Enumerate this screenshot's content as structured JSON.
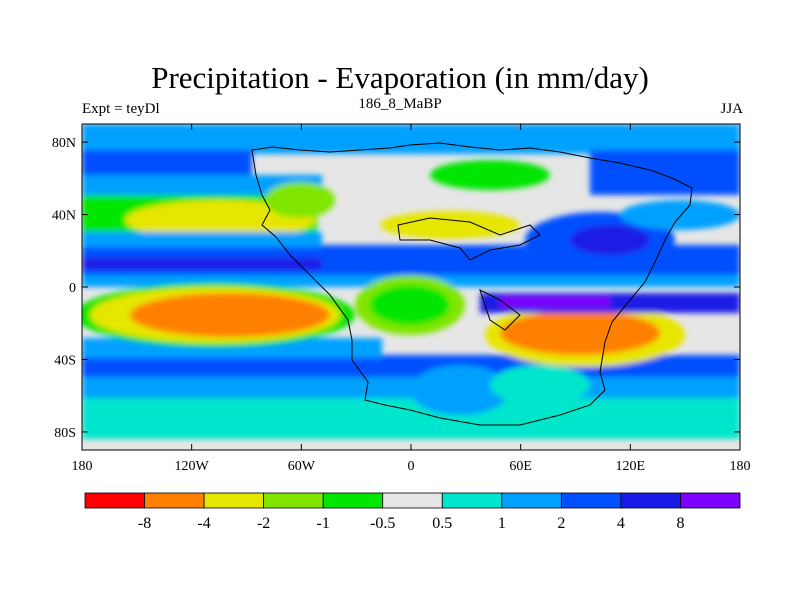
{
  "title": "Precipitation - Evaporation (in mm/day)",
  "left_label": "Expt = teyDl",
  "center_label": "186_8_MaBP",
  "right_label": "JJA",
  "map": {
    "projection": "cylindrical-equidistant",
    "lon_range": [
      -180,
      180
    ],
    "lat_range": [
      -90,
      90
    ],
    "x_ticks": [
      {
        "value": -180,
        "label": "180"
      },
      {
        "value": -120,
        "label": "120W"
      },
      {
        "value": -60,
        "label": "60W"
      },
      {
        "value": 0,
        "label": "0"
      },
      {
        "value": 60,
        "label": "60E"
      },
      {
        "value": 120,
        "label": "120E"
      },
      {
        "value": 180,
        "label": "180"
      }
    ],
    "y_ticks": [
      {
        "value": 80,
        "label": "80N"
      },
      {
        "value": 40,
        "label": "40N"
      },
      {
        "value": 0,
        "label": "0"
      },
      {
        "value": -40,
        "label": "40S"
      },
      {
        "value": -80,
        "label": "80S"
      }
    ]
  },
  "colorbar": {
    "colors": [
      "#ff0000",
      "#ff8000",
      "#e6e600",
      "#80e600",
      "#00e600",
      "#e6e6e6",
      "#00e6cc",
      "#00a0ff",
      "#0050ff",
      "#1a1ae6",
      "#8000ff"
    ],
    "labels": [
      "-8",
      "-4",
      "-2",
      "-1",
      "-0.5",
      "0.5",
      "1",
      "2",
      "4",
      "8"
    ]
  }
}
